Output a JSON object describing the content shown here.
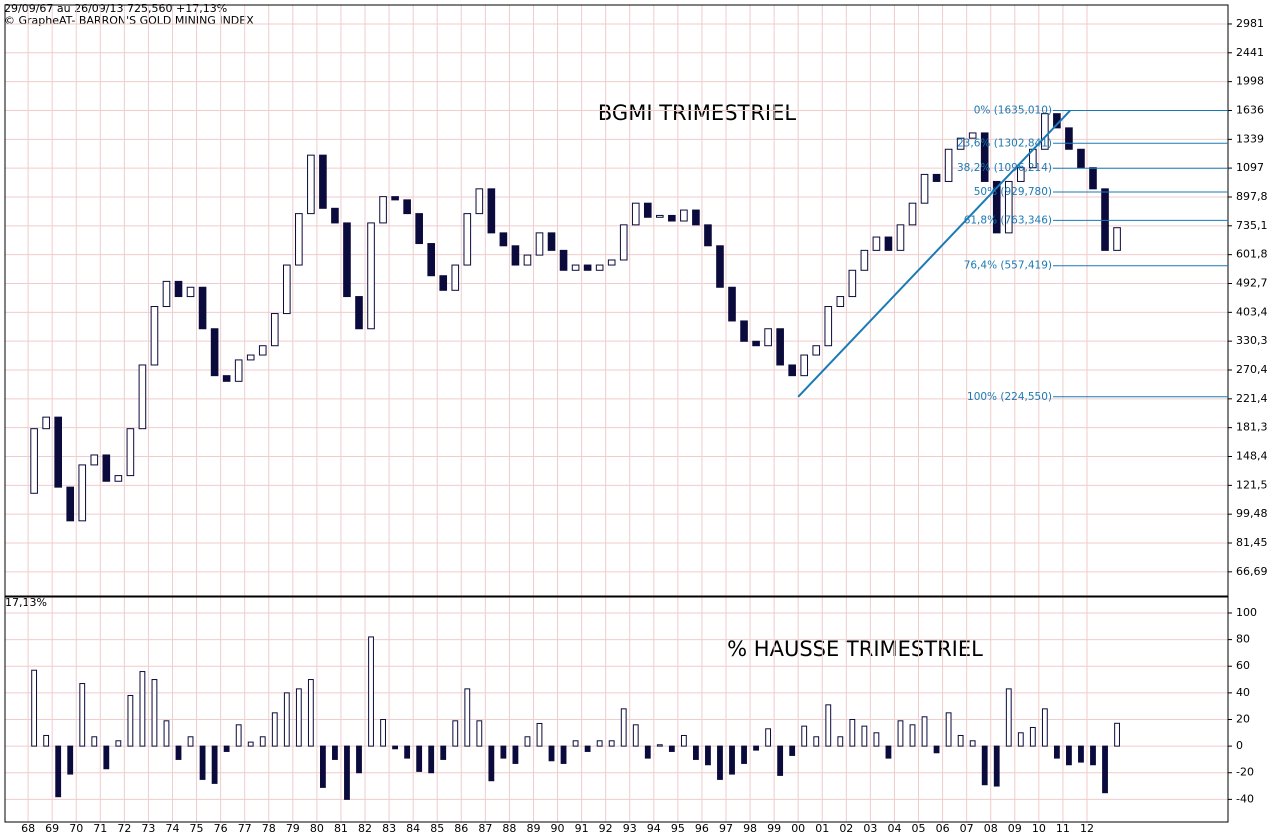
{
  "header": {
    "range": "29/09/67 au 26/09/13  725,560  +17,13%",
    "source": "© GrapheAT- BARRON'S GOLD MINING INDEX"
  },
  "chart_data": [
    {
      "type": "candlestick",
      "title": "BGMI TRIMESTRIEL",
      "log_y": true,
      "grid": true,
      "up_color": "#ffffff",
      "down_color": "#0a0a3c",
      "line_color": "#1a7ab5",
      "xlim": [
        1967.04,
        2017.86
      ],
      "ylim": [
        56.4,
        3400
      ],
      "xticks": [
        {
          "value": 1968,
          "label": "68"
        },
        {
          "value": 1969,
          "label": "69"
        },
        {
          "value": 1970,
          "label": "70"
        },
        {
          "value": 1971,
          "label": "71"
        },
        {
          "value": 1972,
          "label": "72"
        },
        {
          "value": 1973,
          "label": "73"
        },
        {
          "value": 1974,
          "label": "74"
        },
        {
          "value": 1975,
          "label": "75"
        },
        {
          "value": 1976,
          "label": "76"
        },
        {
          "value": 1977,
          "label": "77"
        },
        {
          "value": 1978,
          "label": "78"
        },
        {
          "value": 1979,
          "label": "79"
        },
        {
          "value": 1980,
          "label": "80"
        },
        {
          "value": 1981,
          "label": "81"
        },
        {
          "value": 1982,
          "label": "82"
        },
        {
          "value": 1983,
          "label": "83"
        },
        {
          "value": 1984,
          "label": "84"
        },
        {
          "value": 1985,
          "label": "85"
        },
        {
          "value": 1986,
          "label": "86"
        },
        {
          "value": 1987,
          "label": "87"
        },
        {
          "value": 1988,
          "label": "88"
        },
        {
          "value": 1989,
          "label": "89"
        },
        {
          "value": 1990,
          "label": "90"
        },
        {
          "value": 1991,
          "label": "91"
        },
        {
          "value": 1992,
          "label": "92"
        },
        {
          "value": 1993,
          "label": "93"
        },
        {
          "value": 1994,
          "label": "94"
        },
        {
          "value": 1995,
          "label": "95"
        },
        {
          "value": 1996,
          "label": "96"
        },
        {
          "value": 1997,
          "label": "97"
        },
        {
          "value": 1998,
          "label": "98"
        },
        {
          "value": 1999,
          "label": "99"
        },
        {
          "value": 2000,
          "label": "00"
        },
        {
          "value": 2001,
          "label": "01"
        },
        {
          "value": 2002,
          "label": "02"
        },
        {
          "value": 2003,
          "label": "03"
        },
        {
          "value": 2004,
          "label": "04"
        },
        {
          "value": 2005,
          "label": "05"
        },
        {
          "value": 2006,
          "label": "06"
        },
        {
          "value": 2007,
          "label": "07"
        },
        {
          "value": 2008,
          "label": "08"
        },
        {
          "value": 2009,
          "label": "09"
        },
        {
          "value": 2010,
          "label": "10"
        },
        {
          "value": 2011,
          "label": "11"
        },
        {
          "value": 2012,
          "label": "12"
        }
      ],
      "yticks": [
        2981,
        2441,
        1998,
        1636,
        1339,
        1097,
        {
          "value": 897.8,
          "label": "897,8"
        },
        {
          "value": 735.1,
          "label": "735,1"
        },
        {
          "value": 601.8,
          "label": "601,8"
        },
        {
          "value": 492.7,
          "label": "492,7"
        },
        {
          "value": 403.4,
          "label": "403,4"
        },
        {
          "value": 330.3,
          "label": "330,3"
        },
        {
          "value": 270.4,
          "label": "270,4"
        },
        {
          "value": 221.4,
          "label": "221,4"
        },
        {
          "value": 181.3,
          "label": "181,3"
        },
        {
          "value": 148.4,
          "label": "148,4"
        },
        {
          "value": 121.5,
          "label": "121,5"
        },
        {
          "value": 99.48,
          "label": "99,48"
        },
        {
          "value": 81.45,
          "label": "81,45"
        },
        {
          "value": 66.69,
          "label": "66,69"
        }
      ],
      "x": [
        1967.75,
        1968.25,
        1968.75,
        1969.25,
        1969.75,
        1970.25,
        1970.75,
        1971.25,
        1971.75,
        1972.25,
        1972.75,
        1973.25,
        1973.75,
        1974.25,
        1974.75,
        1975.25,
        1975.75,
        1976.25,
        1976.75,
        1977.25,
        1977.75,
        1978.25,
        1978.75,
        1979.25,
        1979.75,
        1980.25,
        1980.75,
        1981.25,
        1981.75,
        1982.25,
        1982.75,
        1983.25,
        1983.75,
        1984.25,
        1984.75,
        1985.25,
        1985.75,
        1986.25,
        1986.75,
        1987.25,
        1987.75,
        1988.25,
        1988.75,
        1989.25,
        1989.75,
        1990.25,
        1990.75,
        1991.25,
        1991.75,
        1992.25,
        1992.75,
        1993.25,
        1993.75,
        1994.25,
        1994.75,
        1995.25,
        1995.75,
        1996.25,
        1996.75,
        1997.25,
        1997.75,
        1998.25,
        1998.75,
        1999.25,
        1999.75,
        2000.25,
        2000.75,
        2001.25,
        2001.75,
        2002.25,
        2002.75,
        2003.25,
        2003.75,
        2004.25,
        2004.75,
        2005.25,
        2005.75,
        2006.25,
        2006.75,
        2007.25,
        2007.75,
        2008.25,
        2008.75,
        2009.25,
        2009.75,
        2010.25,
        2010.75,
        2011.25,
        2011.75,
        2012.25,
        2012.75,
        2013.25
      ],
      "values": [
        115,
        180,
        195,
        120,
        95,
        140,
        150,
        125,
        130,
        180,
        280,
        420,
        500,
        450,
        480,
        360,
        260,
        250,
        290,
        300,
        320,
        400,
        560,
        800,
        1200,
        830,
        750,
        450,
        360,
        750,
        900,
        880,
        800,
        650,
        520,
        470,
        560,
        800,
        950,
        700,
        640,
        560,
        600,
        700,
        620,
        540,
        560,
        540,
        560,
        580,
        740,
        860,
        780,
        790,
        760,
        820,
        740,
        640,
        480,
        380,
        330,
        320,
        360,
        280,
        260,
        300,
        320,
        420,
        450,
        540,
        620,
        680,
        620,
        740,
        860,
        1050,
        1000,
        1250,
        1350,
        1400,
        1000,
        700,
        1000,
        1100,
        1250,
        1600,
        1450,
        1250,
        1100,
        950,
        620,
        725.56
      ],
      "fibonacci": [
        {
          "value": 1635.01,
          "label": "0% (1635,010)"
        },
        {
          "value": 1302.841,
          "label": "23,6% (1302,841)"
        },
        {
          "value": 1096.214,
          "label": "38,2% (1096,214)"
        },
        {
          "value": 929.78,
          "label": "50% (929,780)"
        },
        {
          "value": 763.346,
          "label": "61,8% (763,346)"
        },
        {
          "value": 557.419,
          "label": "76,4% (557,419)"
        },
        {
          "value": 224.55,
          "label": "100% (224,550)"
        }
      ],
      "trendline": {
        "x": [
          2000.0,
          2011.3
        ],
        "y": [
          224.55,
          1635.01
        ]
      }
    },
    {
      "type": "bar",
      "title": "% HAUSSE TRIMESTRIEL",
      "last_label": "17,13%",
      "grid": true,
      "xlim": [
        1967.04,
        2017.86
      ],
      "ylim": [
        -57,
        112
      ],
      "yticks": [
        100,
        80,
        60,
        40,
        20,
        0,
        -20,
        -40
      ],
      "x": [
        1968.25,
        1968.75,
        1969.25,
        1969.75,
        1970.25,
        1970.75,
        1971.25,
        1971.75,
        1972.25,
        1972.75,
        1973.25,
        1973.75,
        1974.25,
        1974.75,
        1975.25,
        1975.75,
        1976.25,
        1976.75,
        1977.25,
        1977.75,
        1978.25,
        1978.75,
        1979.25,
        1979.75,
        1980.25,
        1980.75,
        1981.25,
        1981.75,
        1982.25,
        1982.75,
        1983.25,
        1983.75,
        1984.25,
        1984.75,
        1985.25,
        1985.75,
        1986.25,
        1986.75,
        1987.25,
        1987.75,
        1988.25,
        1988.75,
        1989.25,
        1989.75,
        1990.25,
        1990.75,
        1991.25,
        1991.75,
        1992.25,
        1992.75,
        1993.25,
        1993.75,
        1994.25,
        1994.75,
        1995.25,
        1995.75,
        1996.25,
        1996.75,
        1997.25,
        1997.75,
        1998.25,
        1998.75,
        1999.25,
        1999.75,
        2000.25,
        2000.75,
        2001.25,
        2001.75,
        2002.25,
        2002.75,
        2003.25,
        2003.75,
        2004.25,
        2004.75,
        2005.25,
        2005.75,
        2006.25,
        2006.75,
        2007.25,
        2007.75,
        2008.25,
        2008.75,
        2009.25,
        2009.75,
        2010.25,
        2010.75,
        2011.25,
        2011.75,
        2012.25,
        2012.75,
        2013.25
      ],
      "values": [
        57,
        8,
        -38,
        -21,
        47,
        7,
        -17,
        4,
        38,
        56,
        50,
        19,
        -10,
        7,
        -25,
        -28,
        -4,
        16,
        3,
        7,
        25,
        40,
        43,
        50,
        -31,
        -10,
        -40,
        -20,
        82,
        20,
        -2,
        -9,
        -19,
        -20,
        -10,
        19,
        43,
        19,
        -26,
        -9,
        -13,
        7,
        17,
        -11,
        -13,
        4,
        -4,
        4,
        4,
        28,
        16,
        -9,
        1,
        -4,
        8,
        -10,
        -14,
        -25,
        -21,
        -13,
        -3,
        13,
        -22,
        -7,
        15,
        7,
        31,
        7,
        20,
        15,
        10,
        -9,
        19,
        16,
        22,
        -5,
        25,
        8,
        4,
        -29,
        -30,
        43,
        10,
        14,
        28,
        -9,
        -14,
        -12,
        -14,
        -35,
        17.13
      ]
    }
  ]
}
